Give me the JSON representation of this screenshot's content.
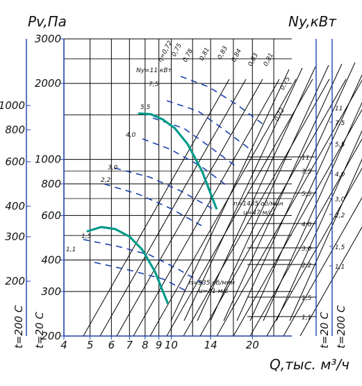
{
  "chart_data": {
    "type": "line",
    "title": "",
    "xlabel": "Q,тыс. м³/ч",
    "ylabel_left": "Pv,Па",
    "ylabel_right": "Ny,кВт",
    "x_ticks": [
      "4",
      "5",
      "6",
      "7",
      "8",
      "9",
      "10",
      "14",
      "20"
    ],
    "y_main_ticks": [
      "200",
      "300",
      "400",
      "600",
      "800",
      "1000",
      "2000",
      "3000"
    ],
    "y_outer_ticks": [
      "200",
      "300",
      "400",
      "600",
      "800",
      "1000"
    ],
    "y_outer_axis_label": "t=200 C",
    "y_main_axis_label": "t=20 C",
    "right_outer_ticks": [
      "1,1",
      "1,5",
      "2,2",
      "3,0",
      "4,0",
      "5,5",
      "7,5",
      "11"
    ],
    "right_outer_axis_label": "t=200 C",
    "right_main_axis_label": "t=20 C",
    "power_labels_right": [
      "1,1",
      "1,5",
      "2,2",
      "3,0",
      "4,0",
      "5,5",
      "7,5",
      "11"
    ],
    "power_labels_left": [
      "Ny=11 кВт",
      "7,5",
      "5,5",
      "4,0",
      "3,0",
      "2,2",
      "1,5",
      "1,1"
    ],
    "efficiency_labels": [
      "η=0,72",
      "0,75",
      "0,78",
      "0,81",
      "0,83",
      "0,84",
      "0,83",
      "0,81",
      "0,75",
      "0,72"
    ],
    "series": [
      {
        "name": "n=1435 об/мин",
        "speed_label": "n=1435 об/мин",
        "velocity_label": "u=47 м/с",
        "color": "#009a8a",
        "x": [
          7.6,
          8.4,
          9.3,
          10.3,
          11.5,
          13.0,
          14.7
        ],
        "y": [
          1520,
          1510,
          1440,
          1330,
          1150,
          900,
          640
        ]
      },
      {
        "name": "n=935 об/мин",
        "speed_label": "n=935 об/мин",
        "velocity_label": "u=31 м/с",
        "color": "#009a8a",
        "x": [
          4.9,
          5.5,
          6.2,
          7.0,
          7.8,
          8.7,
          9.7
        ],
        "y": [
          520,
          540,
          530,
          495,
          440,
          360,
          270
        ]
      }
    ],
    "grid": true,
    "y_scale": "log",
    "x_scale": "log"
  }
}
